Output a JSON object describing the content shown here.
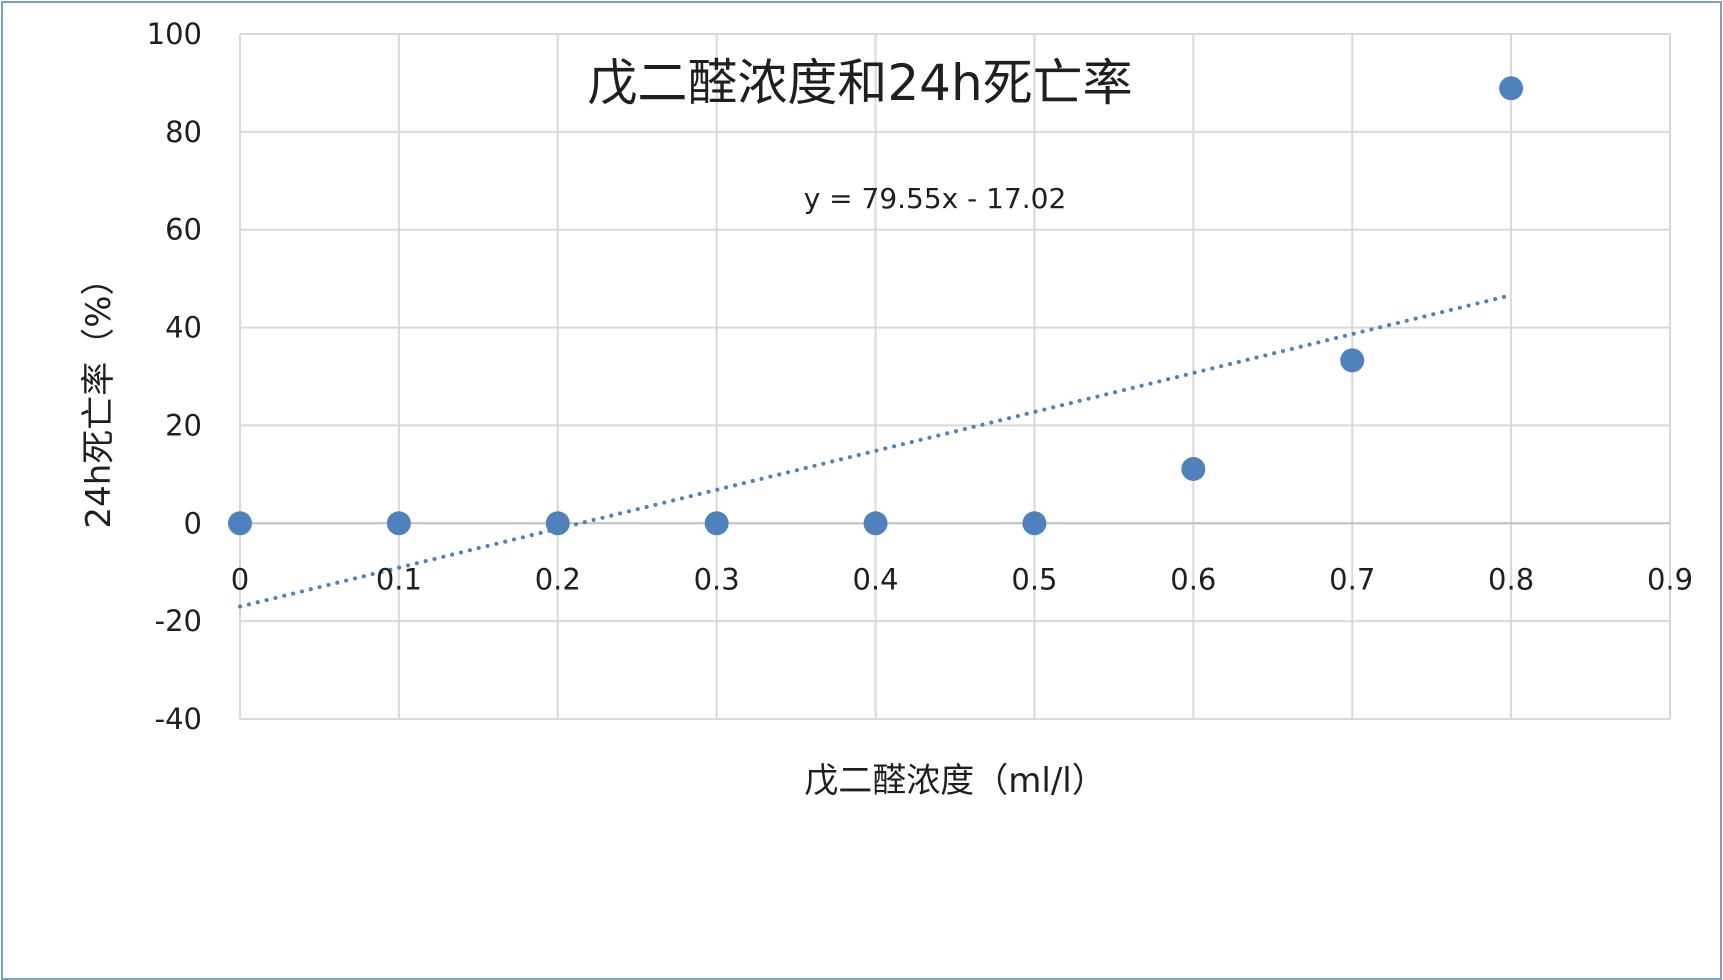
{
  "chart_data": {
    "type": "scatter",
    "title": "戊二醛浓度和24h死亡率",
    "xlabel": "戊二醛浓度（ml/l）",
    "ylabel": "24h死亡率（%）",
    "xlim": [
      0,
      0.9
    ],
    "ylim": [
      -40,
      100
    ],
    "x_ticks": [
      "0",
      "0.1",
      "0.2",
      "0.3",
      "0.4",
      "0.5",
      "0.6",
      "0.7",
      "0.8",
      "0.9"
    ],
    "y_ticks": [
      "100",
      "80",
      "60",
      "40",
      "20",
      "0",
      "-20",
      "-40"
    ],
    "grid": true,
    "x": [
      0,
      0.1,
      0.2,
      0.3,
      0.4,
      0.5,
      0.6,
      0.7,
      0.8
    ],
    "y": [
      0,
      0,
      0,
      0,
      0,
      0,
      11.1,
      33.3,
      88.9
    ],
    "point_color": "#4f81bd",
    "trendline": {
      "type": "linear",
      "slope": 79.55,
      "intercept": -17.02,
      "x_range": [
        0,
        0.8
      ],
      "equation": "y = 79.55x - 17.02",
      "color": "#4f81bd",
      "style": "dotted"
    }
  }
}
